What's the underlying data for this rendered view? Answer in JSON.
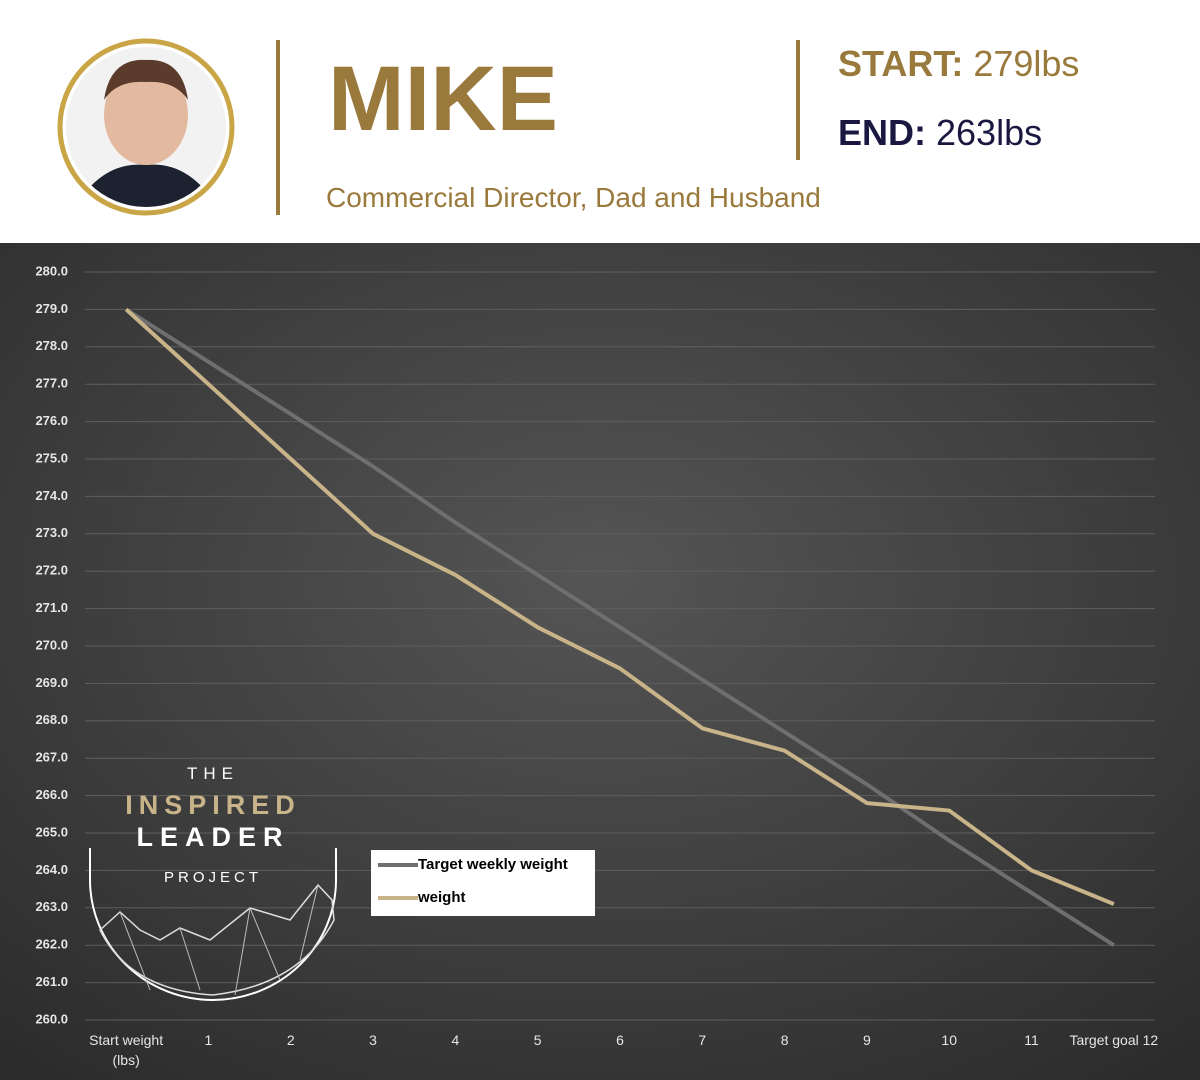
{
  "header": {
    "name": "MIKE",
    "subtitle": "Commercial Director, Dad and Husband",
    "start_label": "START:",
    "start_value": "279lbs",
    "end_label": "END:",
    "end_value": "263lbs"
  },
  "logo": {
    "line1": "THE",
    "line2": "INSPIRED",
    "line3": "LEADER",
    "line4": "PROJECT"
  },
  "chart_data": {
    "type": "line",
    "categories": [
      "Start weight (lbs)",
      "1",
      "2",
      "3",
      "4",
      "5",
      "6",
      "7",
      "8",
      "9",
      "10",
      "11",
      "Target goal 12"
    ],
    "series": [
      {
        "name": "Target weekly weight",
        "color": "#6f6f6f",
        "values": [
          279,
          277.6,
          276.2,
          274.8,
          273.3,
          271.9,
          270.5,
          269.1,
          267.7,
          266.3,
          264.8,
          263.4,
          262
        ]
      },
      {
        "name": "weight",
        "color": "#c9b48a",
        "values": [
          279,
          277,
          275,
          273,
          271.9,
          270.5,
          269.4,
          267.8,
          267.2,
          265.8,
          265.6,
          264,
          263.1
        ]
      }
    ],
    "ylim": [
      260,
      280
    ],
    "yticks": [
      {
        "value": 260,
        "label": "260.0"
      },
      {
        "value": 261,
        "label": "261.0"
      },
      {
        "value": 262,
        "label": "262.0"
      },
      {
        "value": 263,
        "label": "263.0"
      },
      {
        "value": 264,
        "label": "264.0"
      },
      {
        "value": 265,
        "label": "265.0"
      },
      {
        "value": 266,
        "label": "266.0"
      },
      {
        "value": 267,
        "label": "267.0"
      },
      {
        "value": 268,
        "label": "268.0"
      },
      {
        "value": 269,
        "label": "269.0"
      },
      {
        "value": 270,
        "label": "270.0"
      },
      {
        "value": 271,
        "label": "271.0"
      },
      {
        "value": 272,
        "label": "272.0"
      },
      {
        "value": 273,
        "label": "273.0"
      },
      {
        "value": 274,
        "label": "274.0"
      },
      {
        "value": 275,
        "label": "275.0"
      },
      {
        "value": 276,
        "label": "276.0"
      },
      {
        "value": 277,
        "label": "277.0"
      },
      {
        "value": 278,
        "label": "278.0"
      },
      {
        "value": 279,
        "label": "279.0"
      },
      {
        "value": 280,
        "label": "280.0"
      }
    ],
    "grid": true
  }
}
